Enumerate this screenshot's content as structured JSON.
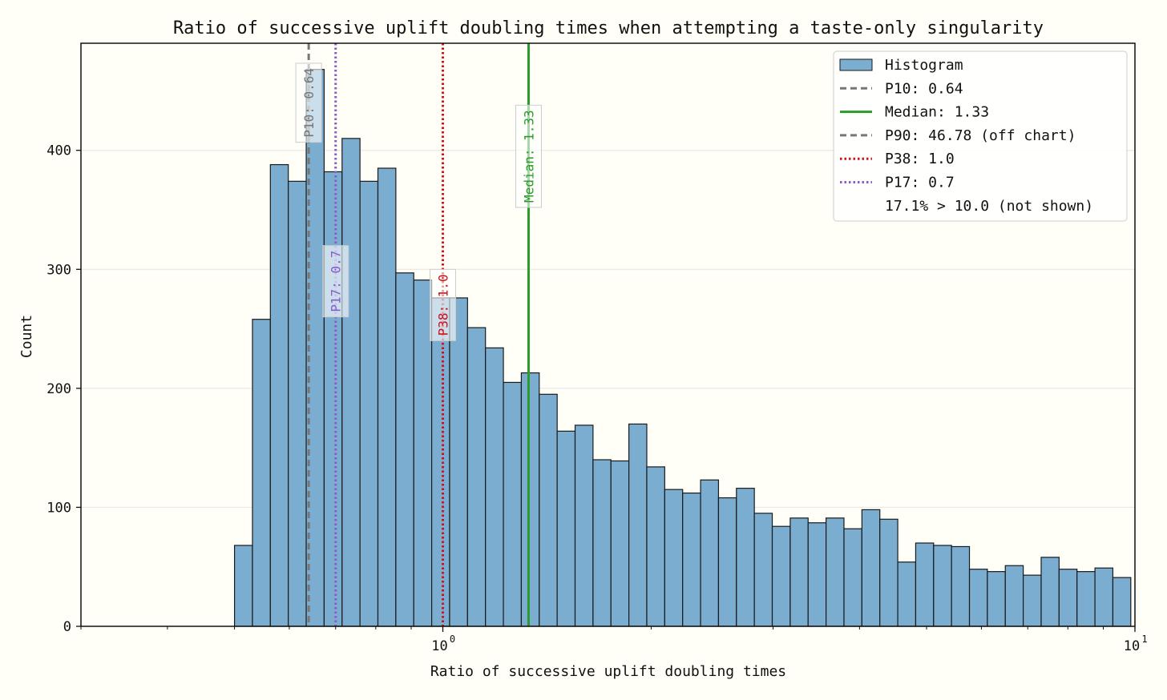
{
  "chart_data": {
    "type": "bar",
    "title": "Ratio of successive uplift doubling times when attempting a taste-only singularity",
    "xlabel": "Ratio of successive uplift doubling times",
    "ylabel": "Count",
    "x_scale": "log",
    "xlim": [
      0.3,
      10
    ],
    "ylim": [
      0,
      490
    ],
    "y_ticks": [
      0,
      100,
      200,
      300,
      400
    ],
    "x_ticks": [
      {
        "value": 1,
        "base": "10",
        "exp": "0"
      },
      {
        "value": 10,
        "base": "10",
        "exp": "1"
      }
    ],
    "bin_edges_log10": {
      "start": -0.301,
      "width": 0.0259
    },
    "counts": [
      68,
      258,
      388,
      374,
      468,
      382,
      410,
      374,
      385,
      297,
      291,
      276,
      276,
      251,
      234,
      205,
      213,
      195,
      164,
      169,
      140,
      139,
      170,
      134,
      115,
      112,
      123,
      108,
      116,
      95,
      84,
      91,
      87,
      91,
      82,
      98,
      90,
      54,
      70,
      68,
      67,
      48,
      46,
      51,
      43,
      58,
      48,
      46,
      49,
      41
    ],
    "bar_color": "#7aadd0",
    "lines": [
      {
        "name": "p10",
        "value": 0.64,
        "label": "P10: 0.64",
        "color": "#777777",
        "style": "dashed",
        "label_y": 440
      },
      {
        "name": "p17",
        "value": 0.7,
        "label": "P17: 0.7",
        "color": "#8a5cc8",
        "style": "dotted",
        "label_y": 290
      },
      {
        "name": "p38",
        "value": 1.0,
        "label": "P38: 1.0",
        "color": "#d0111a",
        "style": "dotted",
        "label_y": 270
      },
      {
        "name": "median",
        "value": 1.33,
        "label": "Median: 1.33",
        "color": "#2a9a2a",
        "style": "solid",
        "label_y": 395
      }
    ],
    "legend": {
      "placement": "top-right",
      "entries": [
        {
          "name": "histogram",
          "label": "Histogram",
          "kind": "patch",
          "color": "#7aadd0"
        },
        {
          "name": "p10",
          "label": "P10: 0.64",
          "kind": "line",
          "color": "#777777",
          "style": "dashed"
        },
        {
          "name": "median",
          "label": "Median: 1.33",
          "kind": "line",
          "color": "#2a9a2a",
          "style": "solid"
        },
        {
          "name": "p90",
          "label": "P90: 46.78 (off chart)",
          "kind": "line",
          "color": "#777777",
          "style": "dashed"
        },
        {
          "name": "p38",
          "label": "P38: 1.0",
          "kind": "line",
          "color": "#d0111a",
          "style": "dotted"
        },
        {
          "name": "p17",
          "label": "P17: 0.7",
          "kind": "line",
          "color": "#8a5cc8",
          "style": "dotted"
        },
        {
          "name": "not-shown",
          "label": "17.1% > 10.0 (not shown)",
          "kind": "none"
        }
      ]
    }
  }
}
